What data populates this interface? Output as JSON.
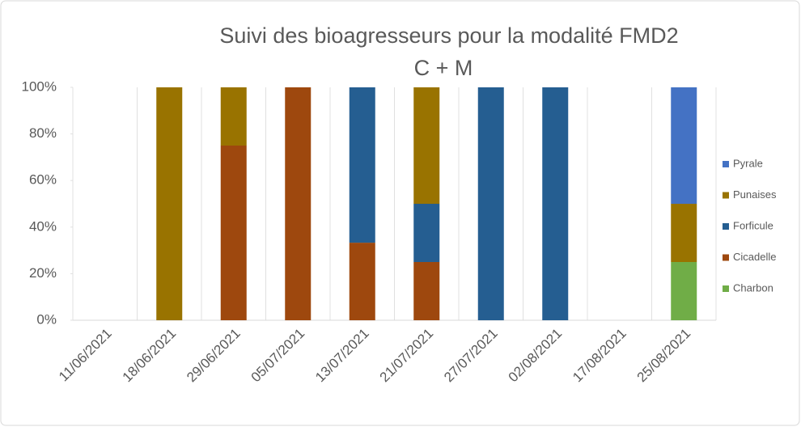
{
  "chart_data": {
    "type": "stacked_bar",
    "title": "Suivi des bioagresseurs pour la modalité FMD2",
    "subtitle": "C + M",
    "categories": [
      "11/06/2021",
      "18/06/2021",
      "29/06/2021",
      "05/07/2021",
      "13/07/2021",
      "21/07/2021",
      "27/07/2021",
      "02/08/2021",
      "17/08/2021",
      "25/08/2021"
    ],
    "series": [
      {
        "name": "Charbon",
        "color": "#70ad47",
        "values": [
          0,
          0,
          0,
          0,
          0,
          0,
          0,
          0,
          0,
          25
        ]
      },
      {
        "name": "Cicadelle",
        "color": "#9e480e",
        "values": [
          0,
          0,
          75,
          100,
          33.3,
          25,
          0,
          0,
          0,
          0
        ]
      },
      {
        "name": "Forficule",
        "color": "#255e91",
        "values": [
          0,
          0,
          0,
          0,
          66.7,
          25,
          100,
          100,
          0,
          0
        ]
      },
      {
        "name": "Punaises",
        "color": "#997300",
        "values": [
          0,
          100,
          25,
          0,
          0,
          50,
          0,
          0,
          0,
          25
        ]
      },
      {
        "name": "Pyrale",
        "color": "#4472c4",
        "values": [
          0,
          0,
          0,
          0,
          0,
          0,
          0,
          0,
          0,
          50
        ]
      }
    ],
    "ylim": [
      0,
      100
    ],
    "yticks": [
      {
        "value": 0,
        "label": "0%"
      },
      {
        "value": 20,
        "label": "20%"
      },
      {
        "value": 40,
        "label": "40%"
      },
      {
        "value": 60,
        "label": "60%"
      },
      {
        "value": 80,
        "label": "80%"
      },
      {
        "value": 100,
        "label": "100%"
      }
    ],
    "legend": "right"
  }
}
